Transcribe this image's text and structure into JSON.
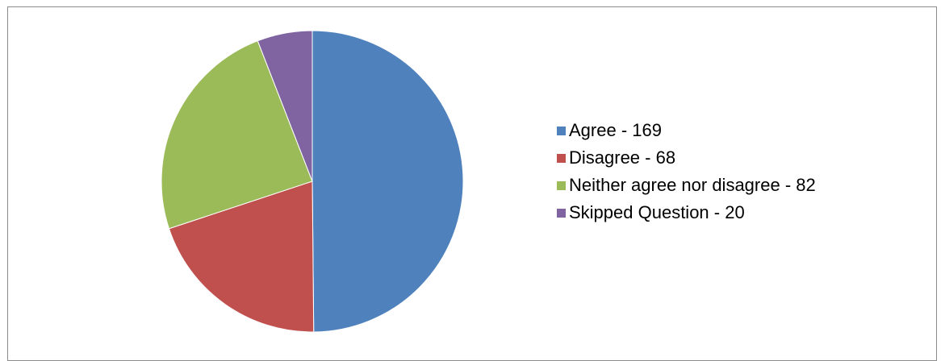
{
  "chart_data": {
    "type": "pie",
    "title": "",
    "start_angle_deg": 0,
    "direction": "clockwise",
    "slices": [
      {
        "label": "Agree",
        "value": 169,
        "color": "#4f81bd",
        "legend": "Agree - 169"
      },
      {
        "label": "Disagree",
        "value": 68,
        "color": "#c0504d",
        "legend": "Disagree - 68"
      },
      {
        "label": "Neither agree nor disagree",
        "value": 82,
        "color": "#9bbb59",
        "legend": "Neither agree nor disagree - 82"
      },
      {
        "label": "Skipped Question",
        "value": 20,
        "color": "#8064a2",
        "legend": "Skipped Question - 20"
      }
    ],
    "legend_position": "right"
  }
}
